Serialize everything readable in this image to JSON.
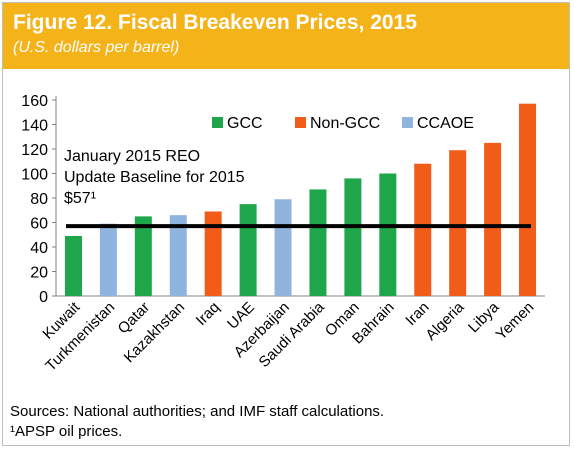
{
  "header": {
    "title": "Figure 12. Fiscal Breakeven Prices, 2015",
    "subtitle": "(U.S. dollars per barrel)"
  },
  "footer": {
    "sources": "Sources: National authorities; and IMF staff calculations.",
    "note": "¹APSP oil prices."
  },
  "colors": {
    "banner": "#f5b31a",
    "GCC": "#1fa64a",
    "Non-GCC": "#f25c19",
    "CCAOE": "#8fb4de",
    "baseline": "#000000"
  },
  "chart_data": {
    "type": "bar",
    "categories": [
      "Kuwait",
      "Turkmenistan",
      "Qatar",
      "Kazakhstan",
      "Iraq",
      "UAE",
      "Azerbaijan",
      "Saudi Arabia",
      "Oman",
      "Bahrain",
      "Iran",
      "Algeria",
      "Libya",
      "Yemen"
    ],
    "values": [
      49,
      59,
      65,
      66,
      69,
      75,
      79,
      87,
      96,
      100,
      108,
      119,
      125,
      157
    ],
    "groups": [
      "GCC",
      "CCAOE",
      "GCC",
      "CCAOE",
      "Non-GCC",
      "GCC",
      "CCAOE",
      "GCC",
      "GCC",
      "GCC",
      "Non-GCC",
      "Non-GCC",
      "Non-GCC",
      "Non-GCC"
    ],
    "legend": [
      "GCC",
      "Non-GCC",
      "CCAOE"
    ],
    "legend_position": "top-right",
    "ylim": [
      0,
      160
    ],
    "yticks": [
      0,
      20,
      40,
      60,
      80,
      100,
      120,
      140,
      160
    ],
    "grid": false,
    "reference_line": {
      "value": 57,
      "label_lines": [
        "January 2015 REO",
        "Update Baseline for 2015",
        "$57¹"
      ]
    }
  }
}
